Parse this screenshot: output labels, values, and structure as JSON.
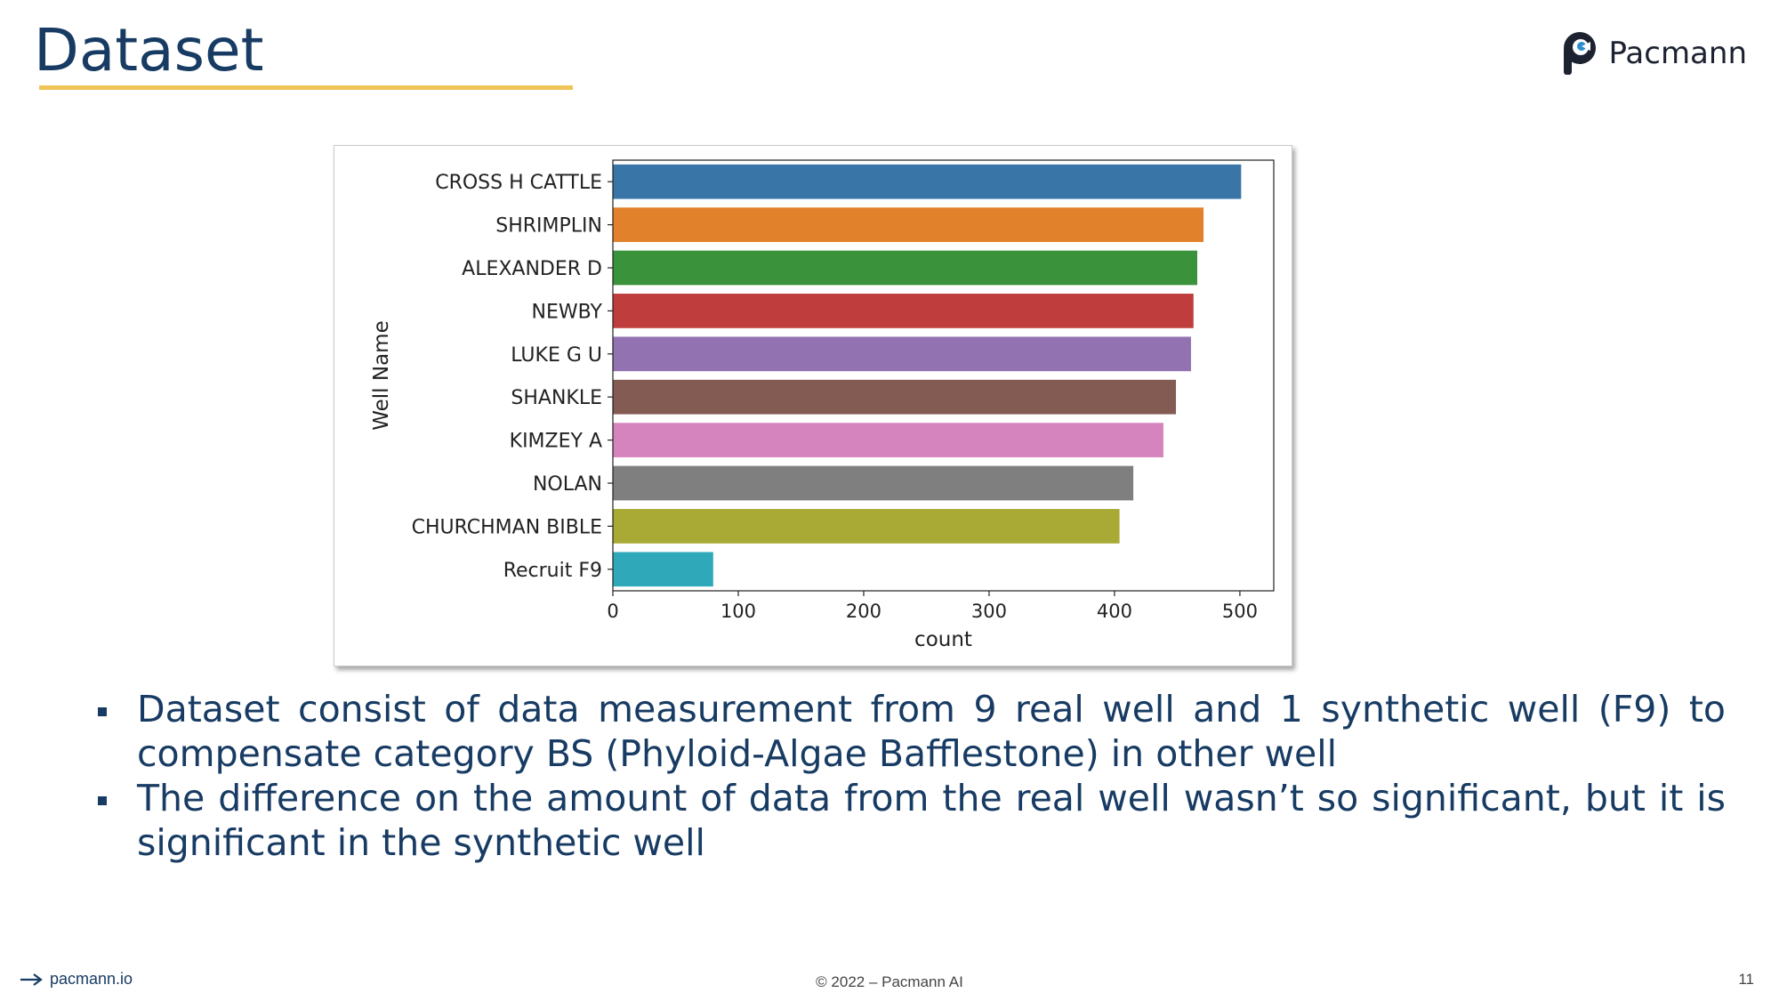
{
  "slide": {
    "title": "Dataset",
    "logo_text": "Pacmann",
    "bullets": [
      "Dataset consist of data measurement from 9 real well and 1 synthetic well (F9) to compensate category BS (Phyloid-Algae Bafflestone) in other well",
      "The difference on the amount of data from the real well wasn’t so significant, but it is significant in the synthetic well"
    ],
    "footer_link": "pacmann.io",
    "copyright": "© 2022 – Pacmann AI",
    "page_number": "11"
  },
  "colors": {
    "title": "#173b63",
    "underline": "#f0c456"
  },
  "chart_data": {
    "type": "bar",
    "orientation": "horizontal",
    "categories": [
      "CROSS H CATTLE",
      "SHRIMPLIN",
      "ALEXANDER D",
      "NEWBY",
      "LUKE G U",
      "SHANKLE",
      "KIMZEY A",
      "NOLAN",
      "CHURCHMAN BIBLE",
      "Recruit F9"
    ],
    "values": [
      501,
      471,
      466,
      463,
      461,
      449,
      439,
      415,
      404,
      80
    ],
    "colors": [
      "#3a75a8",
      "#e1812c",
      "#3a923a",
      "#c03d3e",
      "#9372b2",
      "#845b53",
      "#d684bd",
      "#7f7f7f",
      "#a9aa35",
      "#2fa9b9"
    ],
    "xlabel": "count",
    "ylabel": "Well Name",
    "xlim": [
      0,
      527
    ],
    "xticks": [
      0,
      100,
      200,
      300,
      400,
      500
    ],
    "grid": false
  }
}
